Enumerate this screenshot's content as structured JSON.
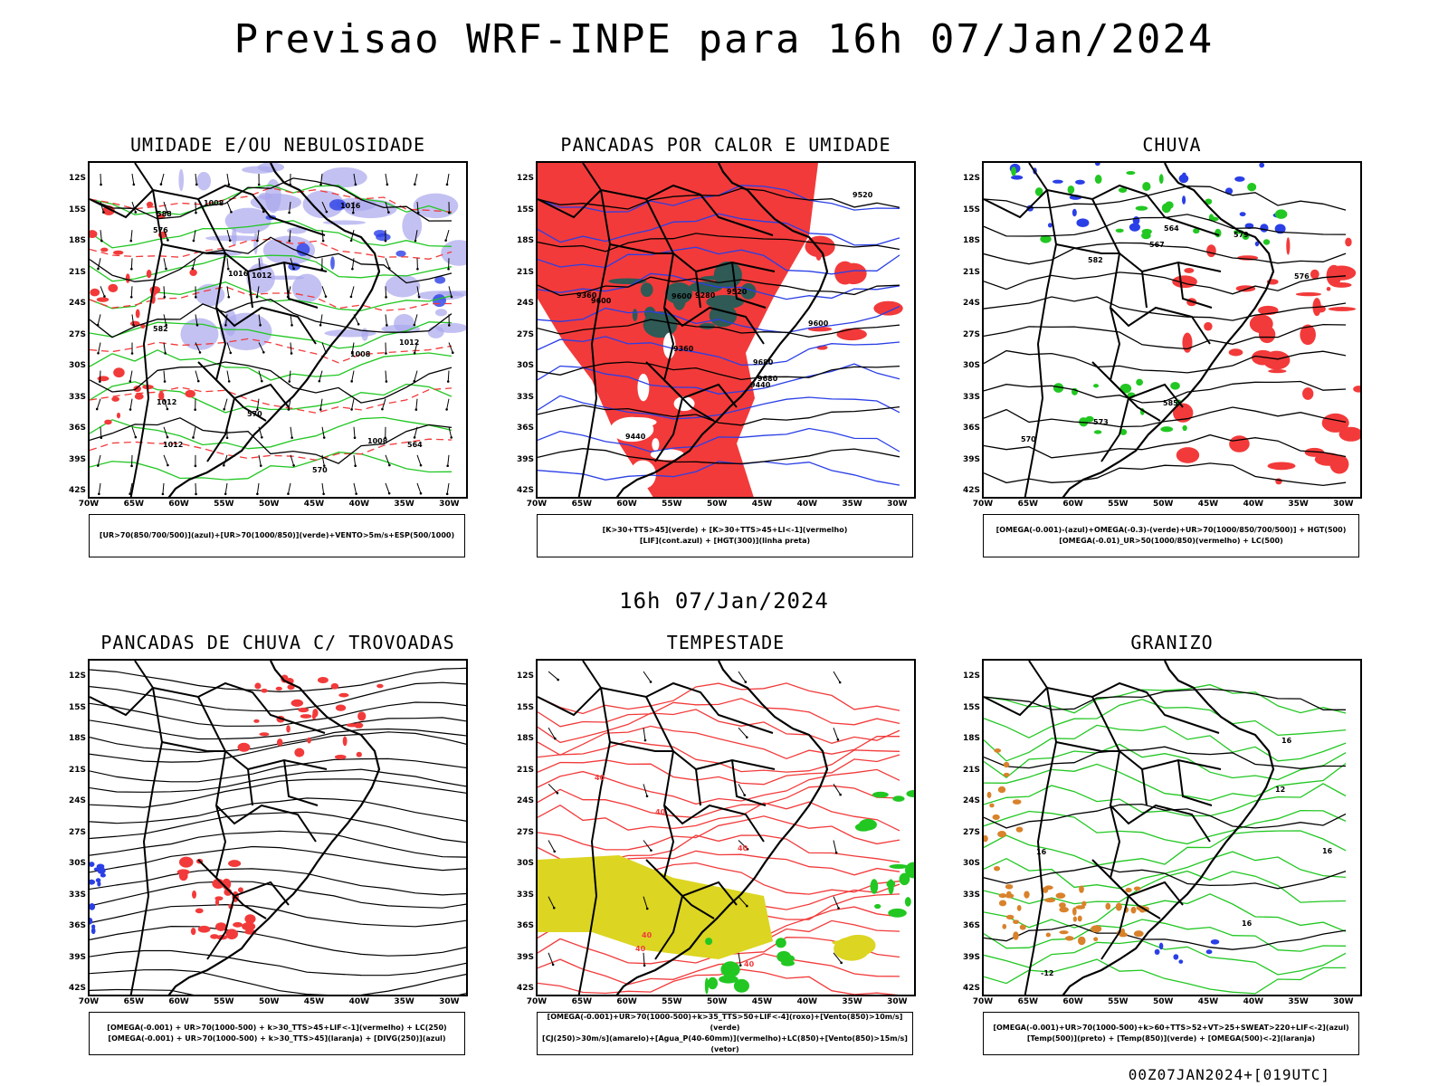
{
  "main_title": "Previsao WRF-INPE  para 16h 07/Jan/2024",
  "mid_title": "16h 07/Jan/2024",
  "footer": "00Z07JAN2024+[019UTC]",
  "y_ticks": [
    "12S",
    "15S",
    "18S",
    "21S",
    "24S",
    "27S",
    "30S",
    "33S",
    "36S",
    "39S",
    "42S"
  ],
  "x_ticks": [
    "70W",
    "65W",
    "60W",
    "55W",
    "50W",
    "45W",
    "40W",
    "35W",
    "30W"
  ],
  "colors": {
    "red": "#f23a3a",
    "green": "#22c722",
    "blue": "#2a3fe6",
    "lavender": "#a9a6ec",
    "teal": "#2f5a55",
    "yellow": "#dcd522",
    "orange": "#d9822b"
  },
  "panels": [
    {
      "title": "UMIDADE E/OU NEBULOSIDADE",
      "legend": [
        "[UR>70(850/700/500)](azul)+[UR>70(1000/850)](verde)+VENTO>5m/s+ESP(500/1000)"
      ],
      "contour_labels": [
        "1008",
        "1012",
        "1012",
        "1008",
        "1012",
        "1008",
        "1012",
        "1016",
        "1016",
        "570",
        "576",
        "582",
        "588",
        "564",
        "570"
      ]
    },
    {
      "title": "PANCADAS POR CALOR E UMIDADE",
      "legend": [
        "[K>30+TTS>45](verde) + [K>30+TTS>45+LI<-1](vermelho)",
        "[LIF](cont.azul) + [HGT(300)](linha preta)"
      ],
      "contour_labels": [
        "9680",
        "9600",
        "9520",
        "9440",
        "9360",
        "9280",
        "9600",
        "9680",
        "9600",
        "9520",
        "9440",
        "9360"
      ]
    },
    {
      "title": "CHUVA",
      "legend": [
        "[OMEGA(-0.001)-(azul)+OMEGA(-0.3)-(verde)+UR>70(1000/850/700/500)] + HGT(500)",
        "[OMEGA(-0.01)_UR>50(1000/850)(vermelho) + LC(500)"
      ],
      "contour_labels": [
        "585",
        "582",
        "579",
        "576",
        "573",
        "570",
        "567",
        "564"
      ]
    },
    {
      "title": "PANCADAS DE CHUVA C/ TROVOADAS",
      "legend": [
        "[OMEGA(-0.001) + UR>70(1000-500) + k>30_TTS>45+LIF<-1](vermelho) + LC(250)",
        "[OMEGA(-0.001) + UR>70(1000-500) + k>30_TTS>45](laranja) + [DIVG(250)](azul)"
      ],
      "contour_labels": []
    },
    {
      "title": "TEMPESTADE",
      "legend": [
        "[OMEGA(-0.001)+UR>70(1000-500)+k>35_TTS>50+LIF<-4](roxo)+[Vento(850)>10m/s](verde)",
        "[CJ(250)>30m/s](amarelo)+[Agua_P(40-60mm)](vermelho)+LC(850)+[Vento(850)>15m/s](vetor)"
      ],
      "contour_labels": [
        "40",
        "40",
        "40",
        "40",
        "40",
        "40"
      ]
    },
    {
      "title": "GRANIZO",
      "legend": [
        "[OMEGA(-0.001)+UR>70(1000-500)+k>60+TTS>52+VT>25+SWEAT>220+LIF<-2](azul)",
        "[Temp(500)](preto) + [Temp(850)](verde) + [OMEGA(500)<-2](laranja)"
      ],
      "contour_labels": [
        "-12",
        "16",
        "16",
        "16",
        "16",
        "12"
      ]
    }
  ]
}
